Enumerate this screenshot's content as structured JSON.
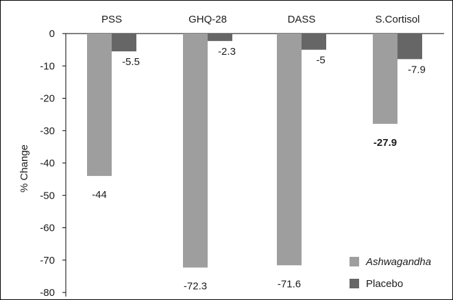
{
  "chart_data": {
    "type": "bar",
    "title": "",
    "xlabel": "",
    "ylabel": "% Change",
    "ylim": [
      -80,
      0
    ],
    "yticks": [
      0,
      -10,
      -20,
      -30,
      -40,
      -50,
      -60,
      -70,
      -80
    ],
    "categories": [
      "PSS",
      "GHQ-28",
      "DASS",
      "S.Cortisol"
    ],
    "categories_position": "top",
    "grid": false,
    "legend": "bottom-right",
    "series": [
      {
        "name": "Ashwagandha",
        "color": "#9e9e9e",
        "italic": true,
        "values": [
          -44,
          -72.3,
          -71.6,
          -27.9
        ],
        "labels": [
          "-44",
          "-72.3",
          "-71.6",
          "-27.9"
        ],
        "bold_labels": [
          false,
          false,
          false,
          true
        ]
      },
      {
        "name": "Placebo",
        "color": "#666666",
        "italic": false,
        "values": [
          -5.5,
          -2.3,
          -5,
          -7.9
        ],
        "labels": [
          "-5.5",
          "-2.3",
          "-5",
          "-7.9"
        ],
        "bold_labels": [
          false,
          false,
          false,
          false
        ]
      }
    ]
  }
}
